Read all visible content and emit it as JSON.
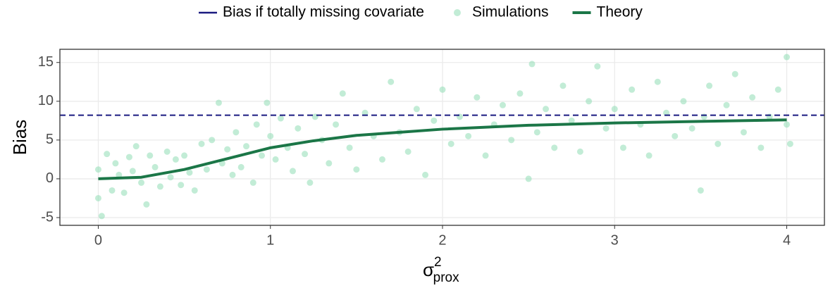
{
  "chart_data": {
    "type": "scatter",
    "ylabel": "Bias",
    "xlabel": {
      "base": "σ",
      "sup": "2",
      "sub": "prox"
    },
    "xlim": [
      -0.223,
      4.219
    ],
    "xticks": [
      0,
      1,
      2,
      3,
      4
    ],
    "ylim": [
      -6.0,
      16.7
    ],
    "yticks": [
      -5,
      0,
      5,
      10,
      15
    ],
    "grid": true,
    "legend_position": "top",
    "hline": {
      "name": "Bias if totally missing covariate",
      "color": "#1a1a80",
      "value": 8.2,
      "style": "dashed"
    },
    "scatter": {
      "name": "Simulations",
      "color": "#8fdcb5",
      "x": [
        0,
        0,
        0.02,
        0.05,
        0.08,
        0.1,
        0.12,
        0.15,
        0.18,
        0.2,
        0.22,
        0.25,
        0.28,
        0.3,
        0.33,
        0.36,
        0.4,
        0.42,
        0.45,
        0.48,
        0.5,
        0.53,
        0.56,
        0.6,
        0.63,
        0.66,
        0.7,
        0.72,
        0.75,
        0.78,
        0.8,
        0.83,
        0.86,
        0.9,
        0.92,
        0.95,
        0.98,
        1.0,
        1.03,
        1.06,
        1.1,
        1.13,
        1.16,
        1.2,
        1.23,
        1.26,
        1.3,
        1.34,
        1.38,
        1.42,
        1.46,
        1.5,
        1.55,
        1.6,
        1.65,
        1.7,
        1.75,
        1.8,
        1.85,
        1.9,
        1.95,
        2.0,
        2.05,
        2.1,
        2.15,
        2.2,
        2.25,
        2.3,
        2.35,
        2.4,
        2.45,
        2.5,
        2.52,
        2.55,
        2.6,
        2.65,
        2.7,
        2.75,
        2.8,
        2.85,
        2.9,
        2.95,
        3.0,
        3.05,
        3.1,
        3.15,
        3.2,
        3.25,
        3.3,
        3.35,
        3.4,
        3.45,
        3.5,
        3.52,
        3.55,
        3.6,
        3.65,
        3.7,
        3.75,
        3.8,
        3.85,
        3.9,
        3.95,
        4.0,
        4.0,
        4.02
      ],
      "values": [
        -2.5,
        1.2,
        -4.8,
        3.2,
        -1.5,
        2.0,
        0.5,
        -1.8,
        2.8,
        1.0,
        4.2,
        -0.5,
        -3.3,
        3.0,
        1.5,
        -1.0,
        3.5,
        0.2,
        2.5,
        -0.8,
        3.0,
        0.8,
        -1.5,
        4.5,
        1.2,
        5.0,
        9.8,
        2.0,
        3.8,
        0.5,
        6.0,
        1.5,
        4.2,
        -0.5,
        7.0,
        3.0,
        9.8,
        5.5,
        2.5,
        7.8,
        4.0,
        1.0,
        6.5,
        3.2,
        -0.5,
        8.0,
        5.0,
        2.0,
        7.0,
        11.0,
        4.0,
        1.2,
        8.5,
        5.5,
        2.5,
        12.5,
        6.0,
        3.5,
        9.0,
        0.5,
        7.5,
        11.5,
        4.5,
        8.0,
        5.5,
        10.5,
        3.0,
        7.0,
        9.5,
        5.0,
        11.0,
        0.0,
        14.8,
        6.0,
        9.0,
        4.0,
        12.0,
        7.5,
        3.5,
        10.0,
        14.5,
        6.5,
        9.0,
        4.0,
        11.5,
        7.0,
        3.0,
        12.5,
        8.5,
        5.5,
        10.0,
        6.5,
        -1.5,
        8.0,
        12.0,
        4.5,
        9.5,
        13.5,
        6.0,
        10.5,
        4.0,
        8.0,
        11.5,
        7.0,
        15.7,
        4.5
      ]
    },
    "line": {
      "name": "Theory",
      "color": "#1b7647",
      "x": [
        0,
        0.25,
        0.5,
        0.75,
        1.0,
        1.25,
        1.5,
        1.75,
        2.0,
        2.5,
        3.0,
        3.5,
        4.0
      ],
      "values": [
        0,
        0.2,
        1.2,
        2.6,
        4.0,
        4.9,
        5.6,
        6.0,
        6.4,
        6.9,
        7.2,
        7.4,
        7.6
      ]
    }
  }
}
